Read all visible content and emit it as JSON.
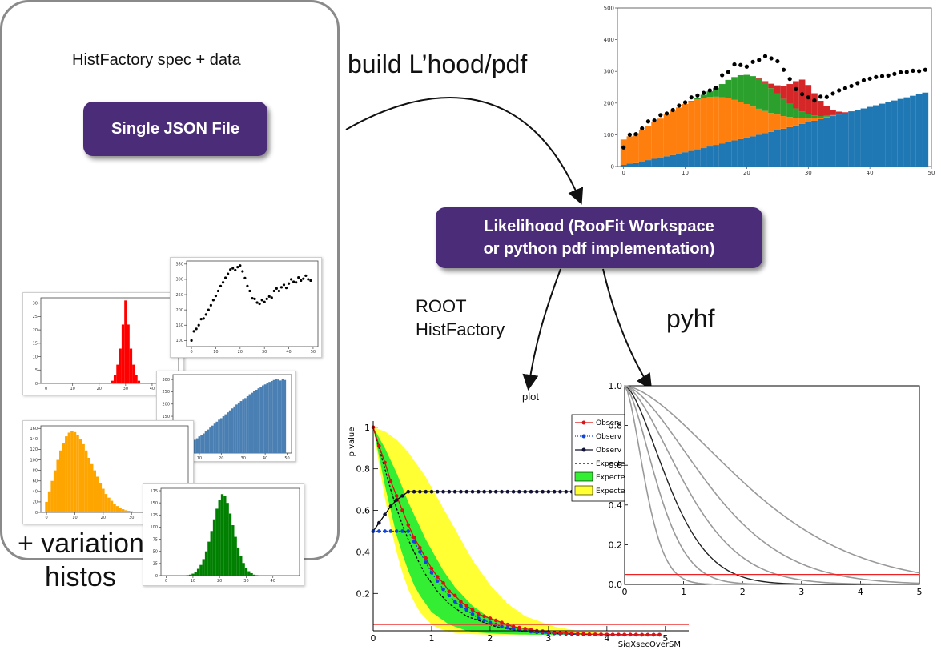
{
  "spec": {
    "box_title": "HistFactory spec + data",
    "json_button": "Single JSON File",
    "variation_label_1": "+ variation",
    "variation_label_2": "histos"
  },
  "flow": {
    "build_label": "build L’hood/pdf",
    "likelihood_line1": "Likelihood (RooFit Workspace",
    "likelihood_line2": "or python pdf implementation)",
    "root_label_1": "ROOT",
    "root_label_2": "HistFactory",
    "pyhf_label": "pyhf",
    "plot_label": "plot"
  },
  "colors": {
    "purple": "#4b2c79",
    "blue": "#1f77b4",
    "orange": "#ff7f0e",
    "green": "#2ca02c",
    "red": "#d62728"
  },
  "chart_data": [
    {
      "id": "stacked-top",
      "type": "bar",
      "x_ticks": [
        "0",
        "10",
        "20",
        "30",
        "40",
        "50"
      ],
      "y_ticks": [
        "0",
        "100",
        "200",
        "300",
        "400",
        "500"
      ],
      "xlim": [
        -1,
        50
      ],
      "ylim": [
        0,
        500
      ],
      "stacked": true,
      "series": [
        {
          "color": "#1f77b4",
          "values": [
            5,
            9,
            13,
            16,
            20,
            24,
            27,
            32,
            36,
            40,
            45,
            49,
            54,
            58,
            63,
            68,
            72,
            77,
            82,
            86,
            91,
            95,
            100,
            105,
            109,
            114,
            119,
            124,
            129,
            134,
            139,
            144,
            149,
            154,
            159,
            164,
            168,
            173,
            178,
            183,
            188,
            193,
            198,
            203,
            208,
            213,
            218,
            223,
            228,
            233
          ]
        },
        {
          "color": "#ff7f0e",
          "values": [
            80,
            86,
            92,
            100,
            108,
            116,
            124,
            132,
            140,
            146,
            152,
            156,
            158,
            158,
            156,
            152,
            146,
            138,
            128,
            118,
            106,
            94,
            82,
            70,
            60,
            50,
            40,
            32,
            24,
            18,
            12,
            8,
            5,
            3,
            2,
            1,
            0,
            0,
            0,
            0,
            0,
            0,
            0,
            0,
            0,
            0,
            0,
            0,
            0,
            0
          ]
        },
        {
          "color": "#2ca02c",
          "values": [
            0,
            0,
            0,
            0,
            0,
            0,
            0,
            0,
            0,
            0,
            0,
            2,
            5,
            10,
            18,
            28,
            42,
            58,
            72,
            84,
            92,
            96,
            94,
            88,
            78,
            66,
            54,
            42,
            30,
            22,
            14,
            9,
            5,
            3,
            1,
            0,
            0,
            0,
            0,
            0,
            0,
            0,
            0,
            0,
            0,
            0,
            0,
            0,
            0,
            0
          ]
        },
        {
          "color": "#d62728",
          "values": [
            0,
            0,
            0,
            0,
            0,
            0,
            0,
            0,
            0,
            0,
            0,
            0,
            0,
            0,
            0,
            0,
            0,
            0,
            0,
            0,
            0,
            0,
            2,
            6,
            14,
            26,
            42,
            62,
            86,
            100,
            92,
            70,
            48,
            30,
            16,
            8,
            3,
            1,
            0,
            0,
            0,
            0,
            0,
            0,
            0,
            0,
            0,
            0,
            0,
            0
          ]
        }
      ],
      "data_points": [
        60,
        100,
        102,
        120,
        142,
        145,
        162,
        167,
        178,
        192,
        202,
        218,
        224,
        232,
        240,
        248,
        288,
        298,
        322,
        320,
        315,
        330,
        336,
        348,
        341,
        332,
        305,
        276,
        244,
        228,
        218,
        208,
        220,
        219,
        230,
        240,
        247,
        254,
        263,
        272,
        277,
        282,
        285,
        287,
        292,
        297,
        298,
        302,
        301,
        305
      ]
    },
    {
      "id": "red-hist",
      "type": "bar",
      "x_ticks": [
        "0",
        "10",
        "20",
        "30",
        "40"
      ],
      "y_ticks": [
        "0",
        "5",
        "10",
        "15",
        "20",
        "25",
        "30"
      ],
      "xlim": [
        -2,
        50
      ],
      "ylim": [
        0,
        32
      ],
      "color": "#ff0000",
      "values": [
        0,
        0,
        0,
        0,
        0,
        0,
        0,
        0,
        0,
        0,
        0,
        0,
        0,
        0,
        0,
        0,
        0,
        0,
        0,
        0,
        0,
        0,
        0,
        0,
        0,
        1,
        3,
        7,
        13,
        22,
        31,
        22,
        13,
        7,
        3,
        1,
        0,
        0,
        0,
        0,
        0,
        0,
        0,
        0,
        0,
        0,
        0,
        0,
        0,
        0
      ]
    },
    {
      "id": "scatter-thumb",
      "type": "scatter",
      "x_ticks": [
        "0",
        "10",
        "20",
        "30",
        "40",
        "50"
      ],
      "y_ticks": [
        "100",
        "150",
        "200",
        "250",
        "300",
        "350"
      ],
      "xlim": [
        -2,
        52
      ],
      "ylim": [
        80,
        360
      ],
      "values": [
        100,
        130,
        138,
        150,
        170,
        172,
        185,
        200,
        215,
        232,
        246,
        262,
        278,
        290,
        305,
        318,
        332,
        336,
        330,
        340,
        345,
        326,
        304,
        278,
        262,
        238,
        236,
        224,
        220,
        232,
        226,
        236,
        244,
        240,
        262,
        270,
        262,
        274,
        282,
        272,
        286,
        300,
        292,
        290,
        306,
        296,
        302,
        312,
        300,
        296
      ]
    },
    {
      "id": "blue-hist",
      "type": "bar",
      "x_ticks": [
        "10",
        "20",
        "30",
        "40",
        "50"
      ],
      "y_ticks": [
        "50",
        "100",
        "150",
        "200",
        "250",
        "300"
      ],
      "xlim": [
        -2,
        52
      ],
      "ylim": [
        0,
        320
      ],
      "color": "#4a7fb3",
      "values": [
        3,
        9,
        16,
        22,
        28,
        36,
        42,
        48,
        54,
        60,
        68,
        74,
        80,
        88,
        96,
        104,
        112,
        120,
        128,
        136,
        142,
        150,
        158,
        166,
        174,
        182,
        190,
        198,
        206,
        212,
        218,
        224,
        232,
        240,
        246,
        252,
        258,
        264,
        270,
        276,
        280,
        286,
        290,
        294,
        298,
        302,
        300,
        296,
        302,
        298
      ]
    },
    {
      "id": "orange-hist",
      "type": "bar",
      "x_ticks": [
        "0",
        "10",
        "20",
        "30",
        "40"
      ],
      "y_ticks": [
        "0",
        "20",
        "40",
        "60",
        "80",
        "100",
        "120",
        "140",
        "160"
      ],
      "xlim": [
        -2,
        50
      ],
      "ylim": [
        0,
        165
      ],
      "color": "#ffa500",
      "values": [
        20,
        40,
        60,
        80,
        100,
        118,
        132,
        145,
        152,
        155,
        153,
        148,
        140,
        130,
        118,
        104,
        92,
        80,
        68,
        56,
        45,
        35,
        28,
        22,
        16,
        12,
        8,
        6,
        4,
        3,
        2,
        1,
        1,
        0,
        0,
        0,
        0,
        0,
        0,
        0,
        0,
        0,
        0,
        0,
        0,
        0,
        0,
        0,
        0,
        0
      ]
    },
    {
      "id": "green-hist",
      "type": "bar",
      "x_ticks": [
        "0",
        "10",
        "20",
        "30",
        "40"
      ],
      "y_ticks": [
        "0",
        "25",
        "50",
        "75",
        "100",
        "125",
        "150",
        "175"
      ],
      "xlim": [
        -2,
        50
      ],
      "ylim": [
        0,
        180
      ],
      "color": "#008000",
      "values": [
        0,
        0,
        0,
        0,
        0,
        0,
        0,
        0,
        1,
        2,
        4,
        8,
        14,
        22,
        34,
        50,
        70,
        92,
        116,
        138,
        156,
        168,
        164,
        150,
        128,
        104,
        80,
        58,
        40,
        26,
        16,
        9,
        5,
        2,
        1,
        0,
        0,
        0,
        0,
        0,
        0,
        0,
        0,
        0,
        0,
        0,
        0,
        0,
        0,
        0
      ]
    },
    {
      "id": "root-cls",
      "type": "line",
      "y_axis_label": "p value",
      "x_axis_label": "SigXsecOverSM",
      "x_ticks": [
        "0",
        "1",
        "2",
        "3",
        "4",
        "5"
      ],
      "y_ticks": [
        "0.2",
        "0.4",
        "0.6",
        "0.8",
        "1"
      ],
      "xlim": [
        0,
        5.4
      ],
      "ylim": [
        0.02,
        1.03
      ],
      "legend_items": [
        "Observ",
        "Observ",
        "Observ",
        "Expecte",
        "Expecte",
        "Expecte"
      ],
      "observed_cls": [
        1.0,
        0.91,
        0.83,
        0.74,
        0.67,
        0.6,
        0.53,
        0.47,
        0.42,
        0.37,
        0.32,
        0.28,
        0.25,
        0.21,
        0.19,
        0.16,
        0.14,
        0.12,
        0.1,
        0.09,
        0.08,
        0.07,
        0.06,
        0.05,
        0.04,
        0.035,
        0.03,
        0.025,
        0.02,
        0.018,
        0.015,
        0.012,
        0.01,
        0.009,
        0.008,
        0.006,
        0.005,
        0.004,
        0.003,
        0.003,
        0.002,
        0.002,
        0.002,
        0.002,
        0.002,
        0.002,
        0.001,
        0.001,
        0.001,
        0.001
      ],
      "observed_clb": [
        0.5,
        0.5,
        0.5,
        0.5,
        0.5,
        0.5,
        0.5,
        0.45,
        0.4,
        0.35,
        0.3,
        0.26,
        0.22,
        0.19,
        0.16,
        0.14,
        0.12,
        0.1,
        0.08,
        0.07,
        0.06,
        0.05,
        0.04,
        0.035,
        0.03,
        0.025,
        0.02,
        0.016,
        0.013,
        0.011,
        0.009,
        0.007,
        0.006,
        0.005,
        0.004,
        0.003,
        0.003,
        0.002,
        0.002,
        0.002,
        0.002,
        0.001,
        0.001,
        0.001,
        0.001,
        0.001,
        0.001,
        0.001,
        0.001,
        0.001
      ],
      "observed_clsb": [
        0.5,
        0.54,
        0.58,
        0.62,
        0.65,
        0.67,
        0.69,
        0.69,
        0.69,
        0.69,
        0.69,
        0.69,
        0.69,
        0.69,
        0.69,
        0.69,
        0.69,
        0.69,
        0.69,
        0.69,
        0.69,
        0.69,
        0.69,
        0.69,
        0.69,
        0.69,
        0.69,
        0.69,
        0.69,
        0.69,
        0.69,
        0.69,
        0.69,
        0.69,
        0.69,
        0.69,
        0.69,
        0.69,
        0.69,
        0.69,
        0.69,
        0.69,
        0.69,
        0.69,
        0.69,
        0.69,
        0.69,
        0.69,
        0.69,
        0.69
      ],
      "expected": [
        1.0,
        0.9,
        0.8,
        0.7,
        0.61,
        0.53,
        0.46,
        0.4,
        0.34,
        0.29,
        0.25,
        0.21,
        0.18,
        0.15,
        0.13,
        0.11,
        0.09,
        0.08,
        0.07,
        0.06,
        0.05,
        0.04,
        0.035,
        0.03,
        0.025,
        0.02,
        0.017,
        0.014,
        0.012,
        0.01,
        0.008,
        0.007,
        0.006,
        0.005,
        0.004,
        0.003,
        0.003,
        0.002,
        0.002,
        0.002,
        0.001,
        0.001,
        0.001,
        0.001,
        0.001,
        0.001,
        0.001,
        0.001,
        0.001,
        0.001
      ],
      "band2_upper": [
        1.0,
        0.99,
        0.98,
        0.96,
        0.94,
        0.91,
        0.88,
        0.84,
        0.8,
        0.76,
        0.71,
        0.66,
        0.61,
        0.56,
        0.51,
        0.46,
        0.41,
        0.36,
        0.32,
        0.28,
        0.24,
        0.21,
        0.18,
        0.15,
        0.13,
        0.11,
        0.09,
        0.08,
        0.07,
        0.06,
        0.05,
        0.04,
        0.035,
        0.03,
        0.025,
        0.02,
        0.018,
        0.015,
        0.012,
        0.01,
        0.009,
        0.008,
        0.007,
        0.006,
        0.005,
        0.005,
        0.004,
        0.004,
        0.003,
        0.003
      ],
      "band2_lower": [
        1.0,
        0.82,
        0.66,
        0.52,
        0.4,
        0.3,
        0.22,
        0.16,
        0.11,
        0.08,
        0.05,
        0.035,
        0.025,
        0.015,
        0.01,
        0.008,
        0.005,
        0.004,
        0.003,
        0.002,
        0.001,
        0.001,
        0.001,
        0.001,
        0.001,
        0.001,
        0.001,
        0.001,
        0.001,
        0.001,
        0.001,
        0.001,
        0.001,
        0.001,
        0.001,
        0.001,
        0.001,
        0.001,
        0.001,
        0.001,
        0.001,
        0.001,
        0.001,
        0.001,
        0.001,
        0.001,
        0.001,
        0.001,
        0.001,
        0.001
      ],
      "band1_upper": [
        1.0,
        0.95,
        0.9,
        0.84,
        0.78,
        0.71,
        0.64,
        0.58,
        0.52,
        0.46,
        0.41,
        0.36,
        0.31,
        0.27,
        0.23,
        0.2,
        0.17,
        0.14,
        0.12,
        0.1,
        0.08,
        0.07,
        0.06,
        0.05,
        0.04,
        0.035,
        0.03,
        0.025,
        0.02,
        0.017,
        0.014,
        0.012,
        0.01,
        0.008,
        0.007,
        0.006,
        0.005,
        0.004,
        0.003,
        0.003,
        0.002,
        0.002,
        0.002,
        0.002,
        0.001,
        0.001,
        0.001,
        0.001,
        0.001,
        0.001
      ],
      "band1_lower": [
        1.0,
        0.86,
        0.72,
        0.6,
        0.48,
        0.39,
        0.31,
        0.24,
        0.19,
        0.15,
        0.11,
        0.09,
        0.07,
        0.05,
        0.04,
        0.03,
        0.02,
        0.015,
        0.012,
        0.01,
        0.008,
        0.006,
        0.005,
        0.004,
        0.003,
        0.002,
        0.002,
        0.001,
        0.001,
        0.001,
        0.001,
        0.001,
        0.001,
        0.001,
        0.001,
        0.001,
        0.001,
        0.001,
        0.001,
        0.001,
        0.001,
        0.001,
        0.001,
        0.001,
        0.001,
        0.001,
        0.001,
        0.001,
        0.001,
        0.001
      ],
      "x_step": 0.1,
      "threshold": 0.05
    },
    {
      "id": "pyhf-cls",
      "type": "line",
      "x_ticks": [
        "0",
        "1",
        "2",
        "3",
        "4",
        "5"
      ],
      "y_ticks": [
        "0.0",
        "0.2",
        "0.4",
        "0.6",
        "0.8",
        "1.0"
      ],
      "xlim": [
        0,
        5
      ],
      "ylim": [
        0,
        1
      ],
      "threshold": 0.05,
      "curve_scales": [
        0.45,
        0.7,
        0.95,
        1.3,
        1.8,
        2.6
      ],
      "highlight_curve": 2
    }
  ]
}
